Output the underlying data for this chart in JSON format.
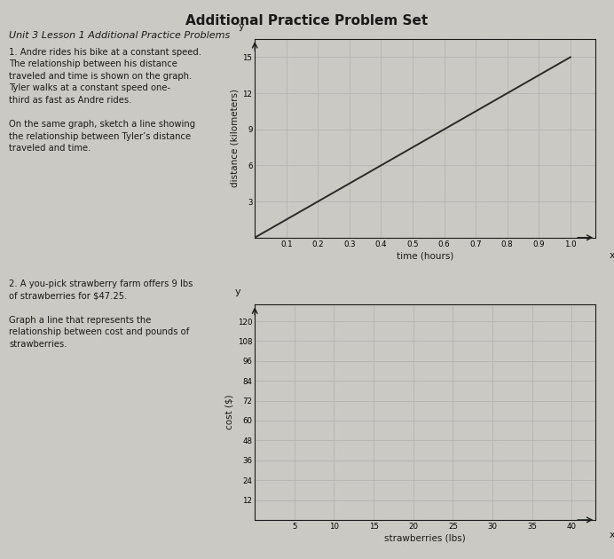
{
  "page_title": "Additional Practice Problem Set",
  "subtitle": "Unit 3 Lesson 1 Additional Practice Problems",
  "problem1": {
    "text_lines": [
      "1. Andre rides his bike at a constant speed.",
      "The relationship between his distance",
      "traveled and time is shown on the graph.",
      "Tyler walks at a constant speed one-",
      "third as fast as Andre rides.",
      "",
      "On the same graph, sketch a line showing",
      "the relationship between Tyler’s distance",
      "traveled and time."
    ],
    "xlabel": "time (hours)",
    "ylabel": "distance (kilometers)",
    "xlim": [
      0,
      1.08
    ],
    "ylim": [
      0,
      16.5
    ],
    "xticks": [
      0.1,
      0.2,
      0.3,
      0.4,
      0.5,
      0.6,
      0.7,
      0.8,
      0.9,
      1.0
    ],
    "yticks": [
      3,
      6,
      9,
      12,
      15
    ],
    "andre_slope": 15,
    "line_color": "#2a2a2a",
    "grid_color": "#b0b0b0"
  },
  "problem2": {
    "text_lines": [
      "2. A you-pick strawberry farm offers 9 lbs",
      "of strawberries for $47.25.",
      "",
      "Graph a line that represents the",
      "relationship between cost and pounds of",
      "strawberries."
    ],
    "xlabel": "strawberries (lbs)",
    "ylabel": "cost ($)",
    "xlim": [
      0,
      43
    ],
    "ylim": [
      0,
      130
    ],
    "xticks": [
      5,
      10,
      15,
      20,
      25,
      30,
      35,
      40
    ],
    "yticks": [
      12,
      24,
      36,
      48,
      60,
      72,
      84,
      96,
      108,
      120
    ],
    "grid_color": "#b0b0b0"
  },
  "background_color": "#cbc9c4",
  "text_color": "#1a1a1a",
  "axis_color": "#1a1a1a"
}
